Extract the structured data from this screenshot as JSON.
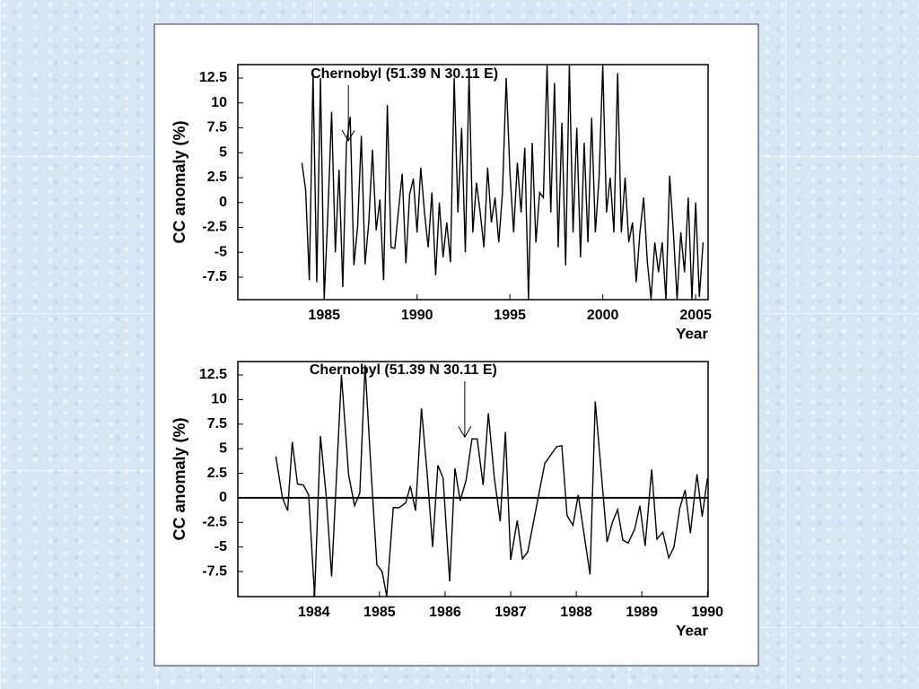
{
  "chart_data": [
    {
      "type": "line",
      "ylabel": "CC anomaly (%)",
      "xlabel": "Year",
      "annotation": {
        "text": "Chernobyl (51.39 N 30.11 E)",
        "x": 1986.3,
        "y": 6
      },
      "xlim": [
        1980.35,
        2005.67
      ],
      "ylim": [
        -9.75,
        13.85
      ],
      "xticks": [
        1985,
        1990,
        1995,
        2000,
        2005
      ],
      "yticks": [
        12.5,
        10,
        7.5,
        5,
        2.5,
        0,
        -2.5,
        -5,
        -7.5
      ],
      "zero_line": false,
      "color": "#000000",
      "series": [
        {
          "name": null,
          "color": "#000000",
          "x": [
            1983.8,
            1984.0,
            1984.2,
            1984.4,
            1984.6,
            1984.8,
            1985.0,
            1985.2,
            1985.4,
            1985.6,
            1985.8,
            1986.0,
            1986.2,
            1986.4,
            1986.6,
            1986.8,
            1987.0,
            1987.2,
            1987.4,
            1987.6,
            1987.8,
            1988.0,
            1988.2,
            1988.4,
            1988.6,
            1988.8,
            1989.0,
            1989.2,
            1989.4,
            1989.6,
            1989.8,
            1990.0,
            1990.2,
            1990.4,
            1990.6,
            1990.8,
            1991.0,
            1991.2,
            1991.4,
            1991.6,
            1991.8,
            1992.0,
            1992.2,
            1992.4,
            1992.6,
            1992.8,
            1993.0,
            1993.2,
            1993.4,
            1993.6,
            1993.8,
            1994.0,
            1994.2,
            1994.4,
            1994.6,
            1994.8,
            1995.0,
            1995.2,
            1995.4,
            1995.6,
            1995.8,
            1996.0,
            1996.2,
            1996.4,
            1996.6,
            1996.8,
            1997.0,
            1997.2,
            1997.4,
            1997.6,
            1997.8,
            1998.0,
            1998.2,
            1998.4,
            1998.6,
            1998.8,
            1999.0,
            1999.2,
            1999.4,
            1999.6,
            1999.8,
            2000.0,
            2000.2,
            2000.4,
            2000.6,
            2000.8,
            2001.0,
            2001.2,
            2001.4,
            2001.6,
            2001.8,
            2002.0,
            2002.2,
            2002.4,
            2002.6,
            2002.8,
            2003.0,
            2003.2,
            2003.4,
            2003.6,
            2003.8,
            2004.0,
            2004.2,
            2004.4,
            2004.6,
            2004.8,
            2005.0,
            2005.2,
            2005.4
          ],
          "values": [
            4,
            1.3,
            -7.8,
            13,
            -8,
            12.5,
            -9.7,
            -1,
            9.1,
            -5,
            3.3,
            -8.5,
            6,
            8.6,
            -6.3,
            -2.4,
            6.7,
            -6.2,
            -2,
            5.3,
            -2.8,
            0.3,
            -7.8,
            9.8,
            -4.5,
            -4.6,
            -0.8,
            2.9,
            -6.1,
            0.8,
            2.4,
            -3,
            3.5,
            -1,
            -4.5,
            1,
            -7.3,
            0,
            -5.5,
            -2,
            -6,
            12.5,
            -1,
            7.5,
            -5,
            13,
            -3,
            2,
            -1,
            -4.5,
            3.5,
            -2,
            0.5,
            -4,
            1,
            12.5,
            3,
            -3,
            4,
            -1,
            5.5,
            -9.7,
            6,
            -4,
            1,
            0.5,
            13.8,
            -1,
            12,
            -4.5,
            8,
            -6.3,
            13.8,
            -3,
            7.5,
            -5.5,
            6,
            -4,
            8.5,
            -3,
            2.5,
            13.8,
            -1,
            2.5,
            -3,
            13,
            -3,
            2.5,
            -4,
            -2,
            -8,
            -3,
            0.5,
            -6,
            -9.7,
            -4,
            -7,
            -4,
            -9.7,
            2.7,
            -3,
            -9.7,
            -3,
            -7,
            0.5,
            -9.7,
            0,
            -9.5,
            -4
          ]
        }
      ]
    },
    {
      "type": "line",
      "ylabel": "CC anomaly (%)",
      "xlabel": "Year",
      "annotation": {
        "text": "Chernobyl (51.39 N 30.11 E)",
        "x": 1986.3,
        "y": 6
      },
      "xlim": [
        1982.84,
        1990.01
      ],
      "ylim": [
        -10.05,
        13.87
      ],
      "xticks": [
        1984,
        1985,
        1986,
        1987,
        1988,
        1989,
        1990
      ],
      "yticks": [
        12.5,
        10,
        7.5,
        5,
        2.5,
        0,
        -2.5,
        -5,
        -7.5
      ],
      "zero_line": true,
      "color": "#000000",
      "series": [
        {
          "name": null,
          "color": "#000000",
          "x": [
            1983.42,
            1983.52,
            1983.6,
            1983.67,
            1983.75,
            1983.84,
            1983.92,
            1984.01,
            1984.1,
            1984.19,
            1984.27,
            1984.42,
            1984.53,
            1984.62,
            1984.7,
            1984.78,
            1984.88,
            1984.96,
            1985.04,
            1985.11,
            1985.21,
            1985.3,
            1985.4,
            1985.47,
            1985.55,
            1985.64,
            1985.73,
            1985.81,
            1985.89,
            1985.97,
            1986.07,
            1986.15,
            1986.23,
            1986.32,
            1986.41,
            1986.49,
            1986.58,
            1986.66,
            1986.75,
            1986.84,
            1986.92,
            1987.0,
            1987.1,
            1987.18,
            1987.26,
            1987.52,
            1987.7,
            1987.78,
            1987.86,
            1987.95,
            1988.03,
            1988.21,
            1988.29,
            1988.47,
            1988.55,
            1988.63,
            1988.71,
            1988.79,
            1988.89,
            1988.97,
            1989.05,
            1989.15,
            1989.23,
            1989.32,
            1989.41,
            1989.49,
            1989.58,
            1989.66,
            1989.74,
            1989.84,
            1989.92,
            1990.0
          ],
          "values": [
            4.2,
            0,
            -1.3,
            5.7,
            1.4,
            1.3,
            0.3,
            -10,
            6.3,
            0,
            -8,
            12.5,
            2.3,
            -0.8,
            0.5,
            13.5,
            1.8,
            -6.8,
            -7.5,
            -10,
            -1,
            -1,
            -0.5,
            1.2,
            -1.3,
            9.1,
            2.2,
            -5,
            3.3,
            2,
            -8.5,
            3,
            -0.3,
            1.8,
            6,
            6,
            1.3,
            8.6,
            2.1,
            -2.4,
            6.7,
            -6.3,
            -2.3,
            -6.2,
            -5.5,
            3.5,
            5.2,
            5.3,
            -1.8,
            -2.8,
            0.3,
            -7.8,
            9.8,
            -4.5,
            -2.5,
            -1.2,
            -4.3,
            -4.6,
            -3.2,
            -0.8,
            -4.9,
            2.9,
            -4.2,
            -3.5,
            -6.1,
            -5,
            -1,
            0.8,
            -3.6,
            2.4,
            -1.9,
            2
          ]
        }
      ]
    }
  ]
}
